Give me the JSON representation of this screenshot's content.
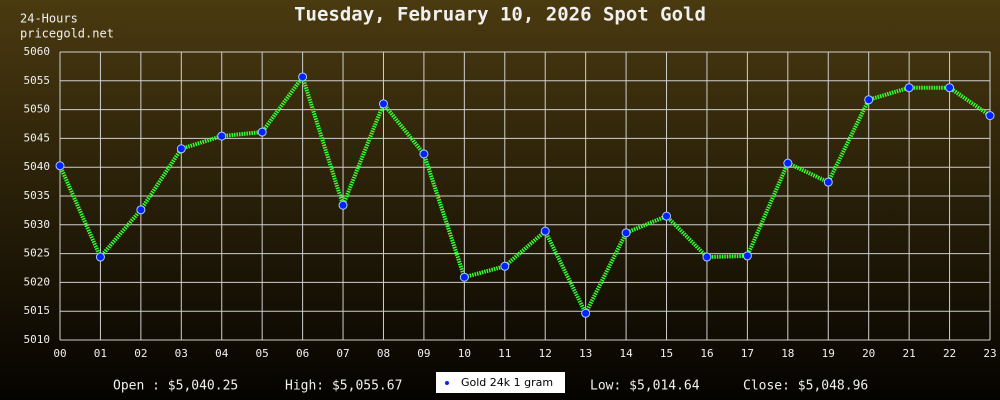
{
  "chart_data": {
    "type": "line",
    "title": "Tuesday, February 10, 2026 Spot Gold",
    "subtitle": "24-Hours",
    "source": "pricegold.net",
    "categories": [
      "00",
      "01",
      "02",
      "03",
      "04",
      "05",
      "06",
      "07",
      "08",
      "09",
      "10",
      "11",
      "12",
      "13",
      "14",
      "15",
      "16",
      "17",
      "18",
      "19",
      "20",
      "21",
      "22",
      "23"
    ],
    "series": [
      {
        "name": "Gold 24k 1 gram",
        "color": "#33ff33",
        "marker_color": "#0022ff",
        "values": [
          5040.25,
          5024.4,
          5032.6,
          5043.2,
          5045.4,
          5046.1,
          5055.67,
          5033.4,
          5051.0,
          5042.3,
          5020.9,
          5022.8,
          5028.9,
          5014.64,
          5028.6,
          5031.5,
          5024.4,
          5024.6,
          5040.7,
          5037.4,
          5051.7,
          5053.8,
          5053.8,
          5048.96
        ]
      }
    ],
    "ylim": [
      5010,
      5060
    ],
    "yticks": [
      5010,
      5015,
      5020,
      5025,
      5030,
      5035,
      5040,
      5045,
      5050,
      5055,
      5060
    ],
    "grid": true,
    "annotations": [
      "Open : $5,040.25",
      "High: $5,055.67",
      "Low: $5,014.64",
      "Close: $5,048.96"
    ]
  }
}
